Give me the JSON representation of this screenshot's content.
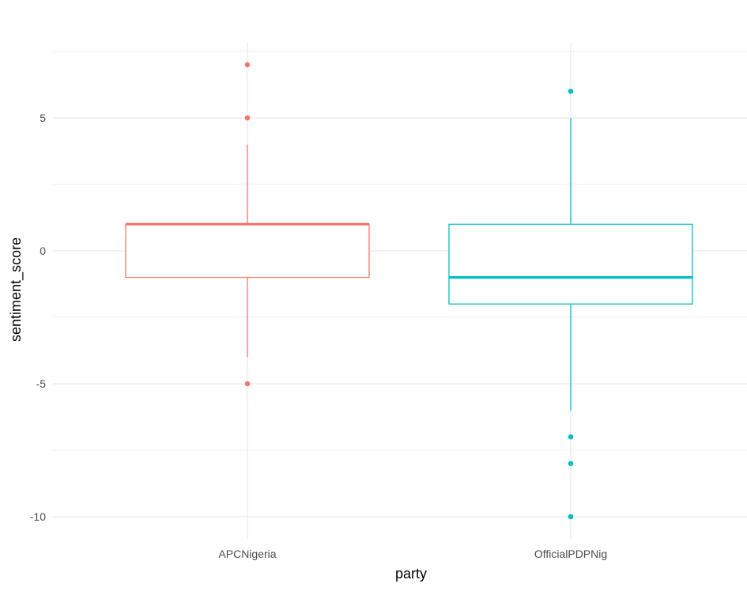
{
  "chart_data": {
    "type": "boxplot",
    "title": "",
    "xlabel": "party",
    "ylabel": "sentiment_score",
    "categories": [
      "APCNigeria",
      "OfficialPDPNig"
    ],
    "ylim": [
      -10.8,
      7.8
    ],
    "yticks": [
      -10,
      -5,
      0,
      5
    ],
    "ytick_labels": [
      "-10",
      "-5",
      "0",
      "5"
    ],
    "grid": true,
    "legend": "none",
    "series": [
      {
        "category": "APCNigeria",
        "color": "#F8766D",
        "whisker_low": -4,
        "q1": -1,
        "median": 1,
        "q3": 1,
        "whisker_high": 4,
        "outliers": [
          7,
          5,
          -5
        ]
      },
      {
        "category": "OfficialPDPNig",
        "color": "#00BFC4",
        "whisker_low": -6,
        "q1": -2,
        "median": -1,
        "q3": 1,
        "whisker_high": 5,
        "outliers": [
          6,
          -7,
          -8,
          -10
        ]
      }
    ]
  }
}
